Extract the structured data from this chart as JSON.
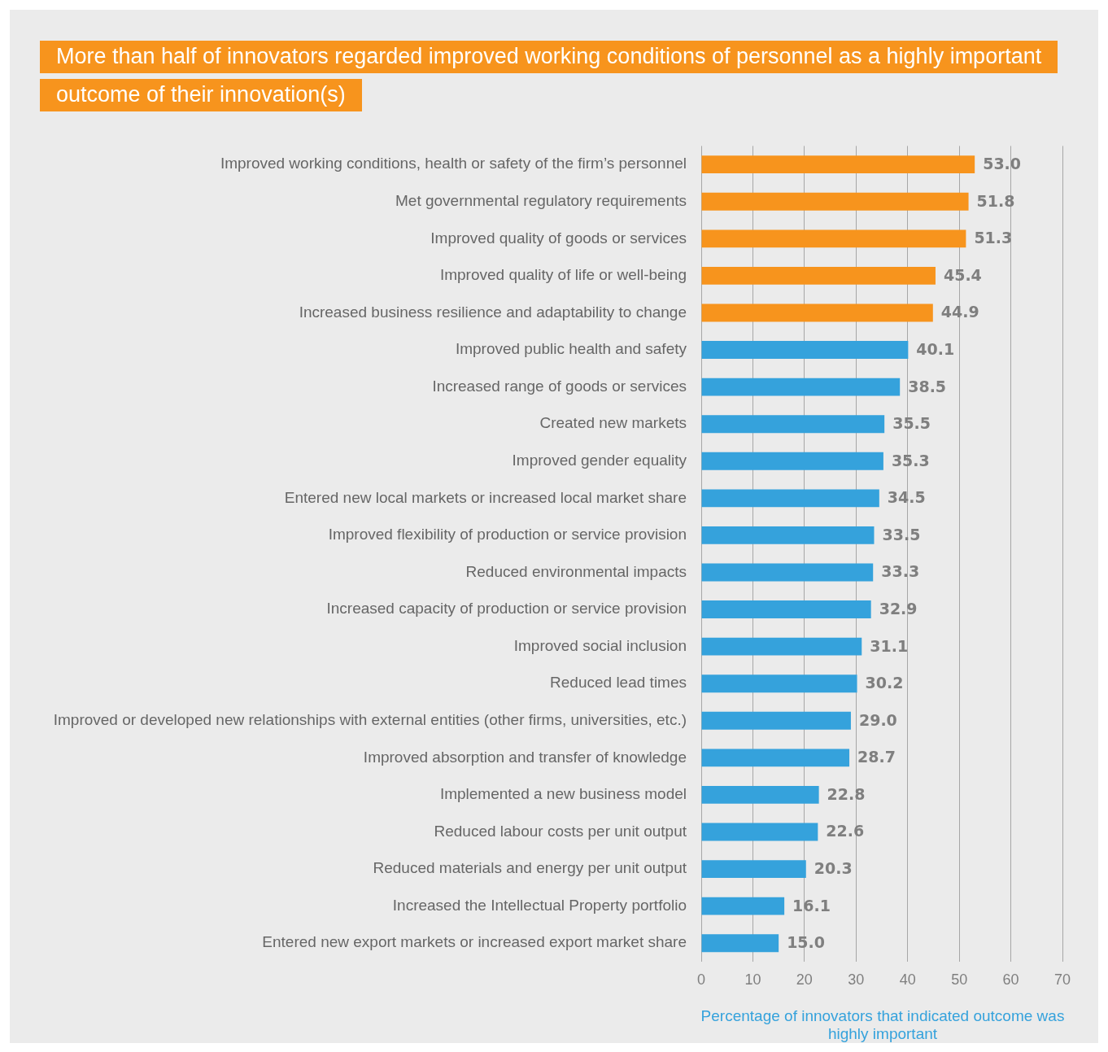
{
  "chart_data": {
    "type": "bar",
    "orientation": "horizontal",
    "title": "More than half of innovators regarded improved working conditions of personnel as a highly important outcome of their innovation(s)",
    "xlabel": "Percentage of innovators that indicated outcome was highly important",
    "categories": [
      "Improved working conditions, health or safety of the firm’s personnel",
      "Met governmental regulatory requirements",
      "Improved quality of goods or services",
      "Improved quality of life or well-being",
      "Increased business resilience and adaptability to change",
      "Improved public health and safety",
      "Increased range of goods or services",
      "Created new markets",
      "Improved gender equality",
      "Entered new local markets or increased local market share",
      "Improved flexibility of production or service provision",
      "Reduced environmental impacts",
      "Increased capacity of production or service provision",
      "Improved social inclusion",
      "Reduced lead times",
      "Improved or developed new relationships with external entities (other firms, universities, etc.)",
      "Improved absorption and transfer of knowledge",
      "Implemented a new business model",
      "Reduced labour costs per unit output",
      "Reduced materials and energy per unit output",
      "Increased the Intellectual Property portfolio",
      "Entered new export markets or increased export market share"
    ],
    "values": [
      53.0,
      51.8,
      51.3,
      45.4,
      44.9,
      40.1,
      38.5,
      35.5,
      35.3,
      34.5,
      33.5,
      33.3,
      32.9,
      31.1,
      30.2,
      29.0,
      28.7,
      22.8,
      22.6,
      20.3,
      16.1,
      15.0
    ],
    "value_labels": [
      "53.0",
      "51.8",
      "51.3",
      "45.4",
      "44.9",
      "40.1",
      "38.5",
      "35.5",
      "35.3",
      "34.5",
      "33.5",
      "33.3",
      "32.9",
      "31.1",
      "30.2",
      "29.0",
      "28.7",
      "22.8",
      "22.6",
      "20.3",
      "16.1",
      "15.0"
    ],
    "colors": [
      "#f7941d",
      "#f7941d",
      "#f7941d",
      "#f7941d",
      "#f7941d",
      "#35a2dc",
      "#35a2dc",
      "#35a2dc",
      "#35a2dc",
      "#35a2dc",
      "#35a2dc",
      "#35a2dc",
      "#35a2dc",
      "#35a2dc",
      "#35a2dc",
      "#35a2dc",
      "#35a2dc",
      "#35a2dc",
      "#35a2dc",
      "#35a2dc",
      "#35a2dc",
      "#35a2dc"
    ],
    "xlim": [
      0,
      70
    ],
    "xticks": [
      0,
      10,
      20,
      30,
      40,
      50,
      60,
      70
    ],
    "grid": "x",
    "legend": false
  }
}
